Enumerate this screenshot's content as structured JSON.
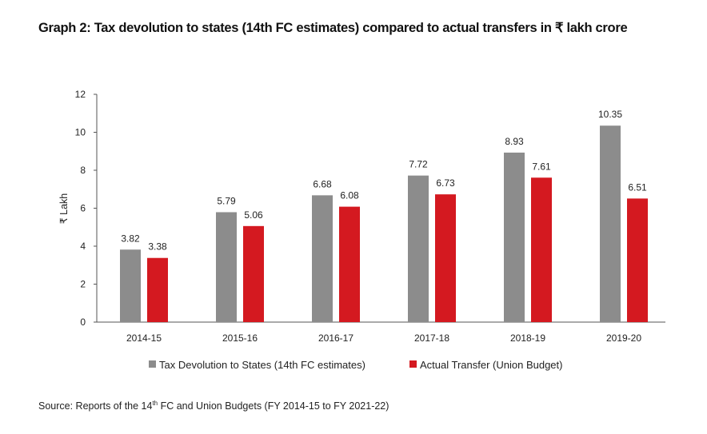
{
  "title": "Graph 2: Tax devolution to states (14th FC estimates) compared to actual transfers in ₹ lakh crore",
  "source": {
    "prefix": "Source: Reports of the 14",
    "sup": "th",
    "suffix": " FC and Union Budgets (FY 2014-15 to FY 2021-22)"
  },
  "colors": {
    "tax": "#8c8c8c",
    "actual": "#d41920",
    "axis": "#555555"
  },
  "chart_data": {
    "type": "bar",
    "title": "Graph 2: Tax devolution to states (14th FC estimates) compared to actual transfers in ₹ lakh crore",
    "xlabel": "",
    "ylabel": "₹ Lakh",
    "ylim": [
      0,
      12
    ],
    "yticks": [
      0,
      2,
      4,
      6,
      8,
      10,
      12
    ],
    "grid": false,
    "legend_position": "bottom",
    "categories": [
      "2014-15",
      "2015-16",
      "2016-17",
      "2017-18",
      "2018-19",
      "2019-20"
    ],
    "series": [
      {
        "name": "Tax Devolution to States (14th FC estimates)",
        "color": "#8c8c8c",
        "values": [
          3.82,
          5.79,
          6.68,
          7.72,
          8.93,
          10.35
        ]
      },
      {
        "name": "Actual Transfer (Union Budget)",
        "color": "#d41920",
        "values": [
          3.38,
          5.06,
          6.08,
          6.73,
          7.61,
          6.51
        ]
      }
    ]
  }
}
